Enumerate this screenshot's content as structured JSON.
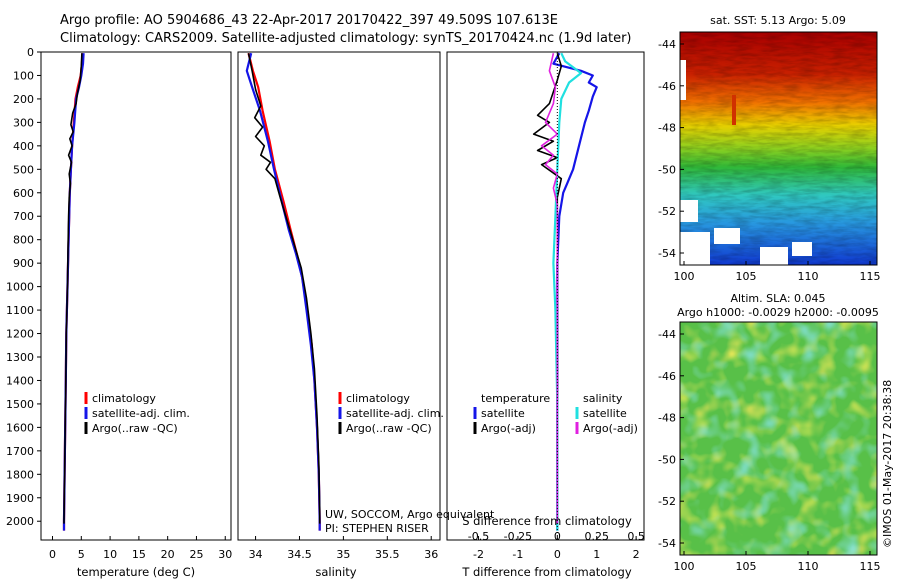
{
  "title_line1": "Argo profile: AO 5904686_43 22-Apr-2017 20170422_397 49.509S 107.613E",
  "title_line2": "Climatology: CARS2009. Satellite-adjusted climatology: synTS_20170424.nc (1.9d later)",
  "colors": {
    "climatology": "#ff0000",
    "satellite": "#1515e8",
    "argo": "#000000",
    "sal_satellite": "#20e0e0",
    "sal_argo": "#e020e0"
  },
  "legend": {
    "climatology": "climatology",
    "satellite_adj": "satellite-adj. clim.",
    "argo_raw": "Argo(..raw -QC)",
    "temperature": "temperature",
    "salinity": "salinity",
    "satellite": "satellite",
    "argo_adj": "Argo(-adj)"
  },
  "credits": {
    "line1": "UW, SOCCOM, Argo equivalent",
    "line2": "PI: STEPHEN RISER",
    "imos": "©IMOS 01-May-2017 20:38:38"
  },
  "maps": {
    "sst_title": "sat. SST: 5.13 Argo: 5.09",
    "sla_title1": "Altim. SLA: 0.045",
    "sla_title2": "Argo h1000: -0.0029 h2000: -0.0095",
    "lat_ticks": [
      "-44",
      "-46",
      "-48",
      "-50",
      "-52",
      "-54"
    ],
    "lon_ticks": [
      "100",
      "105",
      "110",
      "115"
    ]
  },
  "chart_data": [
    {
      "type": "line",
      "name": "temperature-profile",
      "xlabel": "temperature (deg C)",
      "ylabel": "",
      "xlim": [
        -2,
        31
      ],
      "ylim": [
        2080,
        0
      ],
      "xticks": [
        0,
        5,
        10,
        15,
        20,
        25,
        30
      ],
      "yticks": [
        0,
        100,
        200,
        300,
        400,
        500,
        600,
        700,
        800,
        900,
        1000,
        1100,
        1200,
        1300,
        1400,
        1500,
        1600,
        1700,
        1800,
        1900,
        2000
      ],
      "series": [
        {
          "name": "climatology",
          "color_key": "climatology",
          "width": 2.2,
          "points": [
            [
              5.2,
              5
            ],
            [
              5.1,
              50
            ],
            [
              4.9,
              100
            ],
            [
              4.4,
              150
            ],
            [
              4.0,
              200
            ],
            [
              3.7,
              300
            ],
            [
              3.4,
              400
            ],
            [
              3.2,
              500
            ],
            [
              3.0,
              600
            ],
            [
              2.9,
              700
            ],
            [
              2.8,
              800
            ],
            [
              2.6,
              1000
            ],
            [
              2.4,
              1200
            ],
            [
              2.3,
              1400
            ],
            [
              2.2,
              1600
            ],
            [
              2.1,
              1800
            ],
            [
              2.0,
              2000
            ],
            [
              2.0,
              2040
            ]
          ]
        },
        {
          "name": "satellite",
          "color_key": "satellite",
          "width": 2.2,
          "points": [
            [
              5.4,
              5
            ],
            [
              5.3,
              50
            ],
            [
              5.0,
              100
            ],
            [
              4.6,
              150
            ],
            [
              4.1,
              200
            ],
            [
              3.8,
              300
            ],
            [
              3.4,
              400
            ],
            [
              3.2,
              500
            ],
            [
              3.0,
              600
            ],
            [
              2.9,
              700
            ],
            [
              2.8,
              800
            ],
            [
              2.6,
              1000
            ],
            [
              2.4,
              1200
            ],
            [
              2.3,
              1400
            ],
            [
              2.2,
              1600
            ],
            [
              2.1,
              1800
            ],
            [
              2.0,
              2000
            ],
            [
              2.0,
              2040
            ]
          ]
        },
        {
          "name": "argo",
          "color_key": "argo",
          "width": 1.6,
          "points": [
            [
              5.1,
              5
            ],
            [
              5.0,
              60
            ],
            [
              4.8,
              120
            ],
            [
              4.3,
              180
            ],
            [
              4.1,
              220
            ],
            [
              3.5,
              260
            ],
            [
              3.2,
              310
            ],
            [
              3.6,
              340
            ],
            [
              3.0,
              370
            ],
            [
              3.4,
              400
            ],
            [
              2.8,
              440
            ],
            [
              3.3,
              470
            ],
            [
              2.9,
              520
            ],
            [
              3.1,
              560
            ],
            [
              2.9,
              620
            ],
            [
              2.8,
              700
            ],
            [
              2.7,
              820
            ],
            [
              2.6,
              1000
            ],
            [
              2.4,
              1200
            ],
            [
              2.3,
              1400
            ],
            [
              2.2,
              1600
            ],
            [
              2.1,
              1800
            ],
            [
              2.0,
              2000
            ],
            [
              2.0,
              2010
            ]
          ]
        }
      ],
      "legend": {
        "position": "lower-middle",
        "items": [
          "climatology",
          "satellite_adj",
          "argo_raw"
        ]
      }
    },
    {
      "type": "line",
      "name": "salinity-profile",
      "xlabel": "salinity",
      "xlim": [
        33.8,
        36.1
      ],
      "ylim": [
        2080,
        0
      ],
      "xticks": [
        34,
        34.5,
        35,
        35.5,
        36
      ],
      "series": [
        {
          "name": "climatology",
          "color_key": "climatology",
          "width": 2.2,
          "points": [
            [
              33.92,
              5
            ],
            [
              33.97,
              80
            ],
            [
              34.03,
              150
            ],
            [
              34.08,
              250
            ],
            [
              34.16,
              380
            ],
            [
              34.22,
              500
            ],
            [
              34.32,
              640
            ],
            [
              34.4,
              760
            ],
            [
              34.47,
              860
            ],
            [
              34.53,
              960
            ],
            [
              34.59,
              1100
            ],
            [
              34.64,
              1250
            ],
            [
              34.67,
              1400
            ],
            [
              34.7,
              1600
            ],
            [
              34.72,
              1800
            ],
            [
              34.73,
              2000
            ],
            [
              34.73,
              2040
            ]
          ]
        },
        {
          "name": "satellite",
          "color_key": "satellite",
          "width": 2.2,
          "points": [
            [
              33.95,
              5
            ],
            [
              33.9,
              80
            ],
            [
              33.97,
              160
            ],
            [
              34.05,
              250
            ],
            [
              34.14,
              380
            ],
            [
              34.21,
              500
            ],
            [
              34.3,
              640
            ],
            [
              34.38,
              760
            ],
            [
              34.46,
              860
            ],
            [
              34.53,
              960
            ],
            [
              34.58,
              1100
            ],
            [
              34.63,
              1250
            ],
            [
              34.67,
              1400
            ],
            [
              34.7,
              1600
            ],
            [
              34.72,
              1800
            ],
            [
              34.73,
              2000
            ],
            [
              34.73,
              2040
            ]
          ]
        },
        {
          "name": "argo",
          "color_key": "argo",
          "width": 1.6,
          "points": [
            [
              33.92,
              5
            ],
            [
              33.96,
              80
            ],
            [
              34.0,
              160
            ],
            [
              34.06,
              230
            ],
            [
              33.99,
              280
            ],
            [
              34.08,
              320
            ],
            [
              34.0,
              360
            ],
            [
              34.1,
              400
            ],
            [
              34.06,
              440
            ],
            [
              34.17,
              470
            ],
            [
              34.12,
              500
            ],
            [
              34.22,
              540
            ],
            [
              34.28,
              620
            ],
            [
              34.36,
              720
            ],
            [
              34.44,
              820
            ],
            [
              34.52,
              920
            ],
            [
              34.58,
              1050
            ],
            [
              34.63,
              1200
            ],
            [
              34.67,
              1350
            ],
            [
              34.7,
              1550
            ],
            [
              34.72,
              1750
            ],
            [
              34.73,
              1950
            ],
            [
              34.73,
              2010
            ]
          ]
        }
      ],
      "legend": {
        "position": "lower-middle",
        "items": [
          "climatology",
          "satellite_adj",
          "argo_raw"
        ]
      }
    },
    {
      "type": "line",
      "name": "difference-profile",
      "xlabel": "T difference from climatology",
      "xlabel_top": "S difference from climatology",
      "xlim": [
        -2.8,
        2.2
      ],
      "ylim": [
        2080,
        0
      ],
      "xticks": [
        -2,
        -1,
        0,
        1,
        2
      ],
      "xticks_top": [
        "-0.5",
        "-0.25",
        "0",
        "0.25",
        "0.5"
      ],
      "xticks_top_pos": [
        -2,
        -1,
        0,
        1,
        2
      ],
      "series": [
        {
          "name": "T satellite",
          "color_key": "satellite",
          "width": 2.2,
          "points": [
            [
              0.05,
              5
            ],
            [
              -0.1,
              50
            ],
            [
              0.6,
              80
            ],
            [
              0.9,
              100
            ],
            [
              0.8,
              130
            ],
            [
              1.0,
              150
            ],
            [
              0.9,
              190
            ],
            [
              0.8,
              250
            ],
            [
              0.7,
              300
            ],
            [
              0.55,
              400
            ],
            [
              0.4,
              500
            ],
            [
              0.25,
              560
            ],
            [
              0.15,
              600
            ],
            [
              0.05,
              700
            ],
            [
              0.0,
              900
            ],
            [
              0.0,
              2040
            ]
          ]
        },
        {
          "name": "T argo",
          "color_key": "argo",
          "width": 1.6,
          "points": [
            [
              0.0,
              5
            ],
            [
              0.1,
              60
            ],
            [
              0.0,
              120
            ],
            [
              -0.2,
              220
            ],
            [
              -0.5,
              270
            ],
            [
              -0.2,
              300
            ],
            [
              -0.6,
              350
            ],
            [
              -0.1,
              380
            ],
            [
              -0.5,
              420
            ],
            [
              0.0,
              450
            ],
            [
              -0.4,
              480
            ],
            [
              0.1,
              540
            ],
            [
              0.0,
              620
            ],
            [
              0.0,
              2010
            ]
          ]
        },
        {
          "name": "S satellite",
          "color_key": "sal_satellite",
          "width": 2.2,
          "points": [
            [
              0.1,
              5
            ],
            [
              0.2,
              40
            ],
            [
              0.6,
              90
            ],
            [
              0.3,
              130
            ],
            [
              0.1,
              200
            ],
            [
              0.05,
              300
            ],
            [
              0.0,
              500
            ],
            [
              -0.05,
              700
            ],
            [
              -0.1,
              900
            ],
            [
              -0.05,
              1100
            ],
            [
              0.0,
              1500
            ],
            [
              0.0,
              2040
            ]
          ]
        },
        {
          "name": "S argo",
          "color_key": "sal_argo",
          "width": 1.6,
          "points": [
            [
              -0.1,
              5
            ],
            [
              -0.2,
              80
            ],
            [
              -0.05,
              150
            ],
            [
              -0.1,
              220
            ],
            [
              -0.3,
              300
            ],
            [
              0.0,
              350
            ],
            [
              -0.4,
              400
            ],
            [
              -0.1,
              440
            ],
            [
              -0.3,
              480
            ],
            [
              0.0,
              520
            ],
            [
              -0.1,
              580
            ],
            [
              0.0,
              650
            ],
            [
              0.0,
              2010
            ]
          ]
        }
      ],
      "legend": {
        "position": "lower-middle",
        "items": [
          "temperature",
          "salinity"
        ]
      }
    }
  ]
}
